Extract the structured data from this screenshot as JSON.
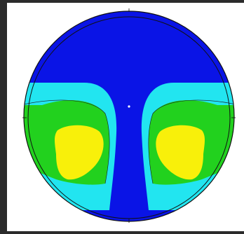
{
  "colors": {
    "background": "#2b2b2b",
    "panel": "#ffffff",
    "level_1": "#0a14e6",
    "level_2": "#22e5f0",
    "level_3": "#22d11e",
    "level_4": "#f8f00a",
    "outline": "#111111"
  },
  "plot": {
    "ticks": {
      "top": "",
      "right": "",
      "bottom": "",
      "left": ""
    }
  }
}
